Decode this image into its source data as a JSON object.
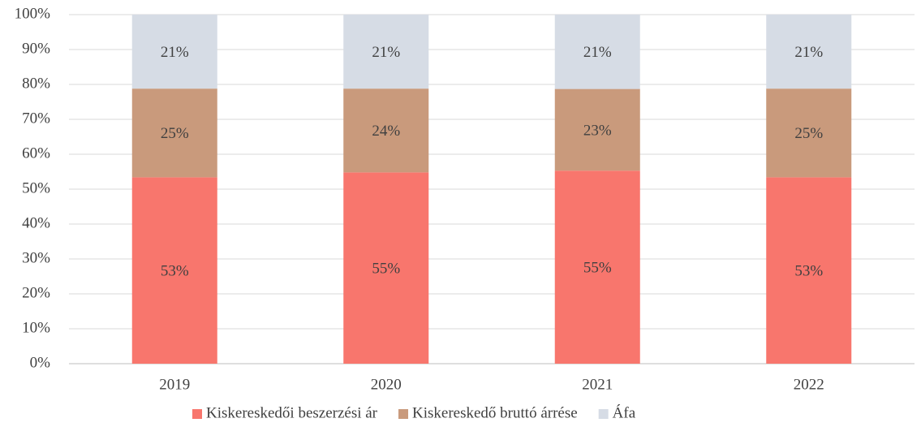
{
  "chart_data": {
    "type": "stacked_bar",
    "categories": [
      "2019",
      "2020",
      "2021",
      "2022"
    ],
    "series": [
      {
        "name": "Kiskereskedői beszerzési ár",
        "color": "#f8766d",
        "values": [
          53.4,
          54.8,
          55.3,
          53.4
        ],
        "value_labels": [
          "53%",
          "55%",
          "55%",
          "53%"
        ]
      },
      {
        "name": "Kiskereskedő bruttó árrése",
        "color": "#c99a7c",
        "values": [
          25.4,
          24.0,
          23.4,
          25.4
        ],
        "value_labels": [
          "25%",
          "24%",
          "23%",
          "25%"
        ]
      },
      {
        "name": "Áfa",
        "color": "#d6dce5",
        "values": [
          21.2,
          21.2,
          21.3,
          21.2
        ],
        "value_labels": [
          "21%",
          "21%",
          "21%",
          "21%"
        ]
      }
    ],
    "ylim": [
      0,
      100
    ],
    "yticks": [
      {
        "value": 0,
        "label": "0%"
      },
      {
        "value": 10,
        "label": "10%"
      },
      {
        "value": 20,
        "label": "20%"
      },
      {
        "value": 30,
        "label": "30%"
      },
      {
        "value": 40,
        "label": "40%"
      },
      {
        "value": 50,
        "label": "50%"
      },
      {
        "value": 60,
        "label": "60%"
      },
      {
        "value": 70,
        "label": "70%"
      },
      {
        "value": 80,
        "label": "80%"
      },
      {
        "value": 90,
        "label": "90%"
      },
      {
        "value": 100,
        "label": "100%"
      }
    ],
    "grid": true,
    "legend": "bottom"
  }
}
